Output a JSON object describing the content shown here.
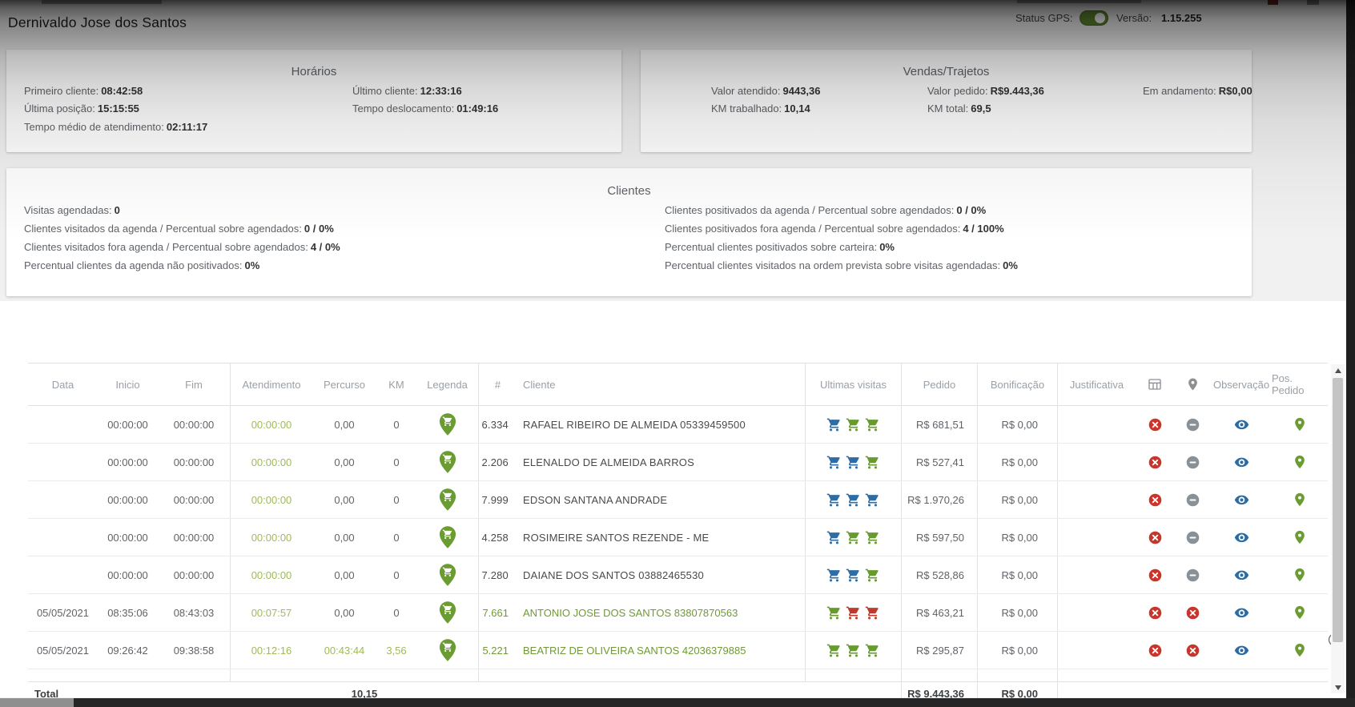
{
  "window": {
    "title": "Dernivaldo Jose dos Santos",
    "status_gps_label": "Status GPS:",
    "versao_label": "Versão:",
    "versao_value": "1.15.255"
  },
  "horarios": {
    "title": "Horários",
    "items": [
      {
        "label": "Primeiro cliente:",
        "value": "08:42:58"
      },
      {
        "label": "Último cliente:",
        "value": "12:33:16"
      },
      {
        "label": "Última posição:",
        "value": "15:15:55"
      },
      {
        "label": "Tempo deslocamento:",
        "value": "01:49:16"
      },
      {
        "label": "Tempo médio de atendimento:",
        "value": "02:11:17"
      }
    ]
  },
  "vendas": {
    "title": "Vendas/Trajetos",
    "items": [
      {
        "label": "Valor atendido:",
        "value": "9443,36"
      },
      {
        "label": "Valor pedido:",
        "value": "R$9.443,36"
      },
      {
        "label": "Em andamento:",
        "value": "R$0,00"
      },
      {
        "label": "KM trabalhado:",
        "value": "10,14"
      },
      {
        "label": "KM total:",
        "value": "69,5"
      }
    ]
  },
  "clientes": {
    "title": "Clientes",
    "left_items": [
      {
        "label": "Visitas agendadas:",
        "value": "0"
      },
      {
        "label": "Clientes visitados da agenda / Percentual sobre agendados:",
        "value": "0 / 0%"
      },
      {
        "label": "Clientes visitados fora agenda / Percentual sobre agendados:",
        "value": "4 / 0%"
      },
      {
        "label": "Percentual clientes da agenda não positivados:",
        "value": "0%"
      }
    ],
    "right_items": [
      {
        "label": "Clientes positivados da agenda / Percentual sobre agendados:",
        "value": "0 / 0%"
      },
      {
        "label": "Clientes positivados fora agenda / Percentual sobre agendados:",
        "value": "4 / 100%"
      },
      {
        "label": "Percentual clientes positivados sobre carteira:",
        "value": "0%"
      },
      {
        "label": "Percentual clientes visitados na ordem prevista sobre visitas agendadas:",
        "value": "0%"
      }
    ]
  },
  "colors": {
    "green": "#6a9c31",
    "green_time": "#a0ba57",
    "green_link": "#6f9a34",
    "cart_blue": "#2e6ca5",
    "cart_green": "#689b2e",
    "cart_red": "#bd3a2c",
    "flag_red": "#c9342b",
    "flag_gray": "#8a9196",
    "eye_blue": "#2b6ca3"
  },
  "table": {
    "columns": [
      {
        "key": "data",
        "label": "Data"
      },
      {
        "key": "inicio",
        "label": "Inicio"
      },
      {
        "key": "fim",
        "label": "Fim"
      },
      {
        "key": "atendimento",
        "label": "Atendimento"
      },
      {
        "key": "percurso",
        "label": "Percurso"
      },
      {
        "key": "km",
        "label": "KM"
      },
      {
        "key": "legenda",
        "label": "Legenda"
      },
      {
        "key": "numero",
        "label": "#"
      },
      {
        "key": "cliente",
        "label": "Cliente"
      },
      {
        "key": "visitas",
        "label": "Ultimas visitas"
      },
      {
        "key": "pedido",
        "label": "Pedido"
      },
      {
        "key": "bonificacao",
        "label": "Bonificação"
      },
      {
        "key": "justificativa",
        "label": "Justificativa"
      },
      {
        "key": "col_grid",
        "icon": "table-grid-icon"
      },
      {
        "key": "col_pin",
        "icon": "map-pin-icon"
      },
      {
        "key": "observacao",
        "label": "Observação"
      },
      {
        "key": "pos_pedido",
        "label": "Pos. Pedido"
      }
    ],
    "rows": [
      {
        "data": "",
        "inicio": "00:00:00",
        "fim": "00:00:00",
        "atendimento": "00:00:00",
        "percurso": "0,00",
        "percurso_green": false,
        "km": "0",
        "numero": "6.334",
        "cliente": "RAFAEL RIBEIRO DE ALMEIDA 05339459500",
        "cliente_green": false,
        "visitas": [
          "blue",
          "green",
          "green"
        ],
        "pedido": "R$ 681,51",
        "bonificacao": "R$ 0,00",
        "justificativa": "",
        "flag2": "minus"
      },
      {
        "data": "",
        "inicio": "00:00:00",
        "fim": "00:00:00",
        "atendimento": "00:00:00",
        "percurso": "0,00",
        "percurso_green": false,
        "km": "0",
        "numero": "2.206",
        "cliente": "ELENALDO DE ALMEIDA BARROS",
        "cliente_green": false,
        "visitas": [
          "blue",
          "blue",
          "green"
        ],
        "pedido": "R$ 527,41",
        "bonificacao": "R$ 0,00",
        "justificativa": "",
        "flag2": "minus"
      },
      {
        "data": "",
        "inicio": "00:00:00",
        "fim": "00:00:00",
        "atendimento": "00:00:00",
        "percurso": "0,00",
        "percurso_green": false,
        "km": "0",
        "numero": "7.999",
        "cliente": "EDSON SANTANA ANDRADE",
        "cliente_green": false,
        "visitas": [
          "blue",
          "blue",
          "blue"
        ],
        "pedido": "R$ 1.970,26",
        "bonificacao": "R$ 0,00",
        "justificativa": "",
        "flag2": "minus"
      },
      {
        "data": "",
        "inicio": "00:00:00",
        "fim": "00:00:00",
        "atendimento": "00:00:00",
        "percurso": "0,00",
        "percurso_green": false,
        "km": "0",
        "numero": "4.258",
        "cliente": "ROSIMEIRE SANTOS REZENDE - ME",
        "cliente_green": false,
        "visitas": [
          "blue",
          "green",
          "green"
        ],
        "pedido": "R$ 597,50",
        "bonificacao": "R$ 0,00",
        "justificativa": "",
        "flag2": "minus"
      },
      {
        "data": "",
        "inicio": "00:00:00",
        "fim": "00:00:00",
        "atendimento": "00:00:00",
        "percurso": "0,00",
        "percurso_green": false,
        "km": "0",
        "numero": "7.280",
        "cliente": "DAIANE DOS SANTOS 03882465530",
        "cliente_green": false,
        "visitas": [
          "blue",
          "blue",
          "green"
        ],
        "pedido": "R$ 528,86",
        "bonificacao": "R$ 0,00",
        "justificativa": "",
        "flag2": "minus"
      },
      {
        "data": "05/05/2021",
        "inicio": "08:35:06",
        "fim": "08:43:03",
        "atendimento": "00:07:57",
        "percurso": "0,00",
        "percurso_green": false,
        "km": "0",
        "numero": "7.661",
        "cliente": "ANTONIO JOSE DOS SANTOS 83807870563",
        "cliente_green": true,
        "visitas": [
          "green",
          "red",
          "red"
        ],
        "pedido": "R$ 463,21",
        "bonificacao": "R$ 0,00",
        "justificativa": "",
        "flag2": "x"
      },
      {
        "data": "05/05/2021",
        "inicio": "09:26:42",
        "fim": "09:38:58",
        "atendimento": "00:12:16",
        "percurso": "00:43:44",
        "percurso_green": true,
        "km": "3,56",
        "numero": "5.221",
        "cliente": "BEATRIZ DE OLIVEIRA SANTOS 42036379885",
        "cliente_green": true,
        "visitas": [
          "green",
          "green",
          "green"
        ],
        "pedido": "R$ 295,87",
        "bonificacao": "R$ 0,00",
        "justificativa": "",
        "flag2": "x"
      }
    ],
    "total": {
      "label": "Total",
      "km": "10,15",
      "pedido": "R$ 9.443,36",
      "bonificacao": "R$ 0,00"
    }
  }
}
